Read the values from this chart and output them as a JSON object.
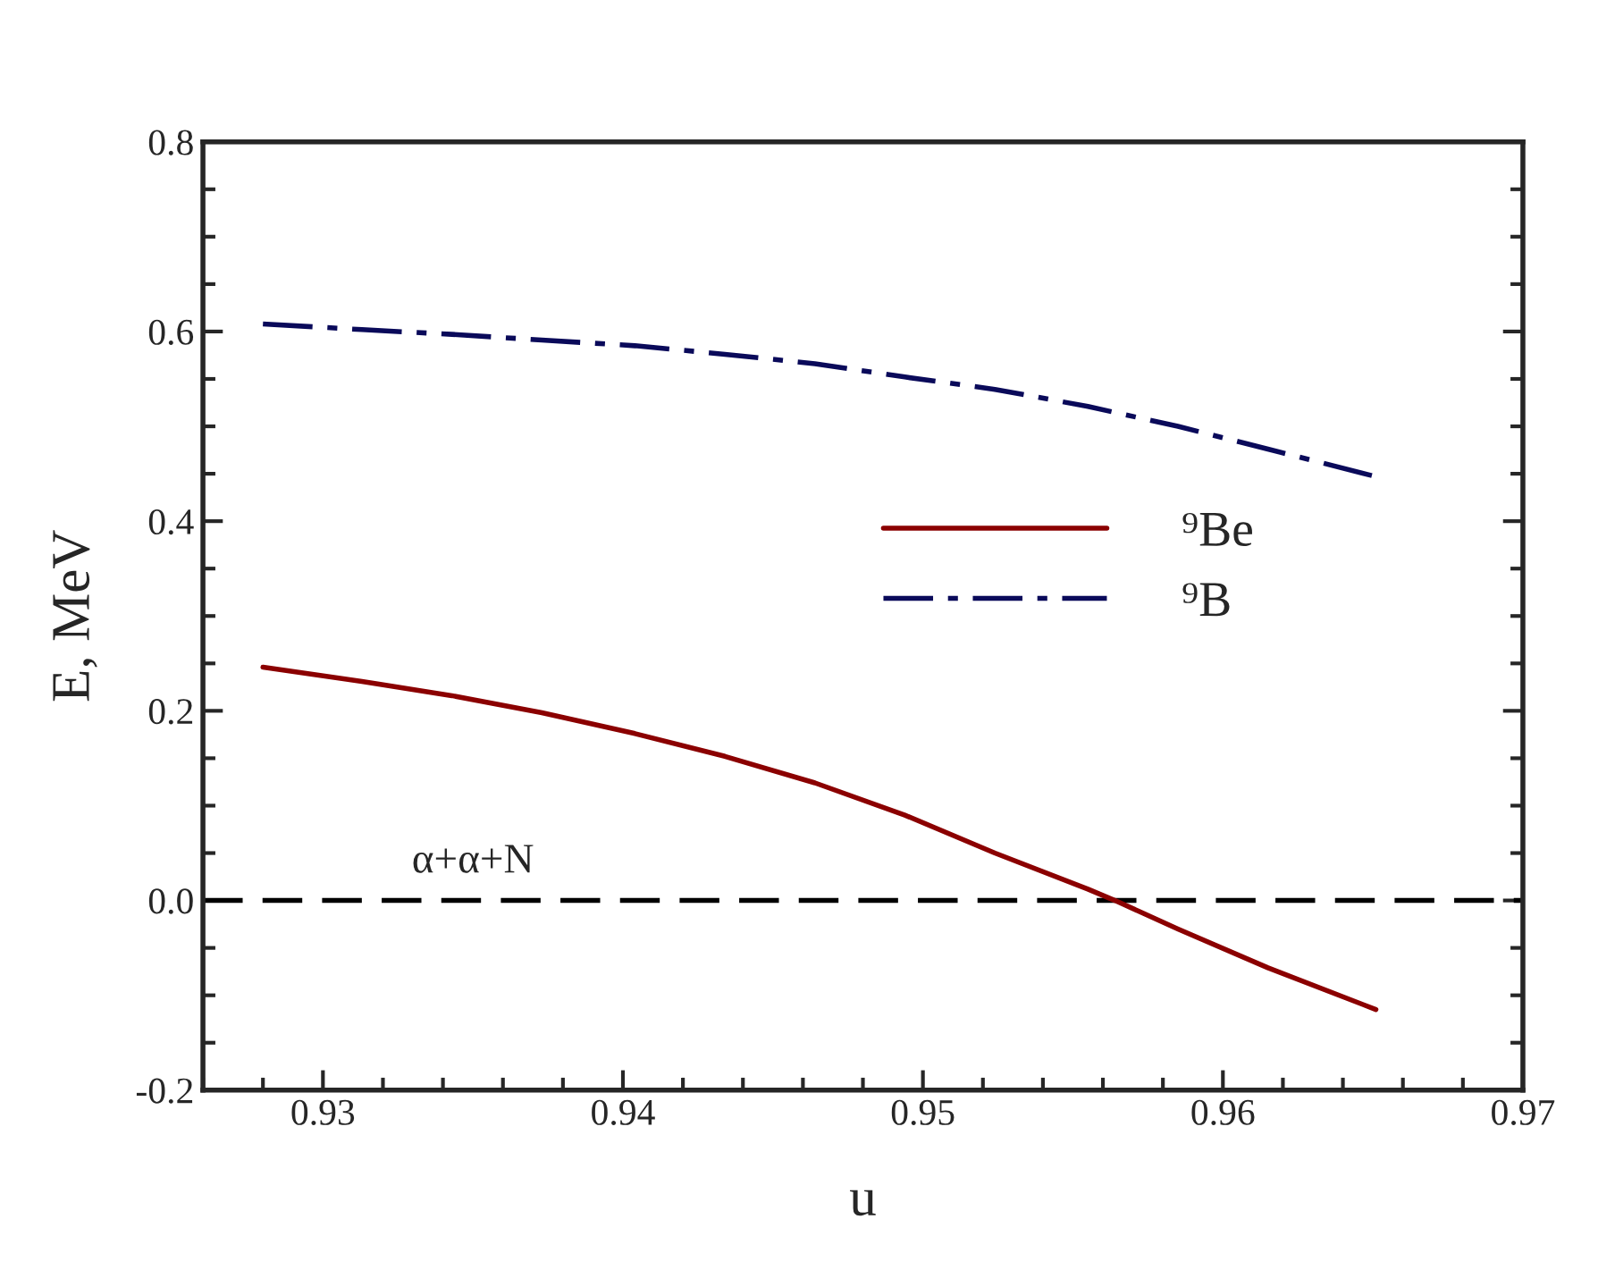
{
  "chart_data": {
    "type": "line",
    "xlabel": "u",
    "ylabel": "E, MeV",
    "xlim": [
      0.926,
      0.97
    ],
    "xticks": [
      0.93,
      0.94,
      0.95,
      0.96,
      0.97
    ],
    "ylim": [
      -0.2,
      0.8
    ],
    "yticks": [
      {
        "value": -0.2,
        "label": "-0.2"
      },
      {
        "value": 0.0,
        "label": "0.0"
      },
      0.2,
      0.4,
      0.6,
      0.8
    ],
    "grid": false,
    "legend": "right",
    "marker": "none",
    "series": [
      {
        "name": "⁹Be",
        "color": "#8b0000",
        "line_style": "solid",
        "x": [
          0.928,
          0.9313,
          0.9343,
          0.9373,
          0.9404,
          0.9434,
          0.9464,
          0.9494,
          0.9524,
          0.9555,
          0.9564,
          0.9585,
          0.9615,
          0.9651
        ],
        "values": [
          0.246,
          0.231,
          0.216,
          0.198,
          0.176,
          0.152,
          0.124,
          0.09,
          0.05,
          0.012,
          0.0,
          -0.03,
          -0.071,
          -0.115
        ]
      },
      {
        "name": "⁹B",
        "color": "#0a0a5a",
        "line_style": "dashdot",
        "x": [
          0.928,
          0.9313,
          0.9343,
          0.9373,
          0.9404,
          0.9434,
          0.9464,
          0.9494,
          0.9524,
          0.9555,
          0.9585,
          0.9615,
          0.9651
        ],
        "values": [
          0.608,
          0.602,
          0.597,
          0.591,
          0.585,
          0.576,
          0.566,
          0.552,
          0.539,
          0.521,
          0.5,
          0.476,
          0.447
        ]
      }
    ],
    "ref_lines": [
      {
        "axis": "y",
        "value": 0.0,
        "label": "α+α+N",
        "color": "#000000",
        "line_style": "dashed"
      }
    ]
  }
}
